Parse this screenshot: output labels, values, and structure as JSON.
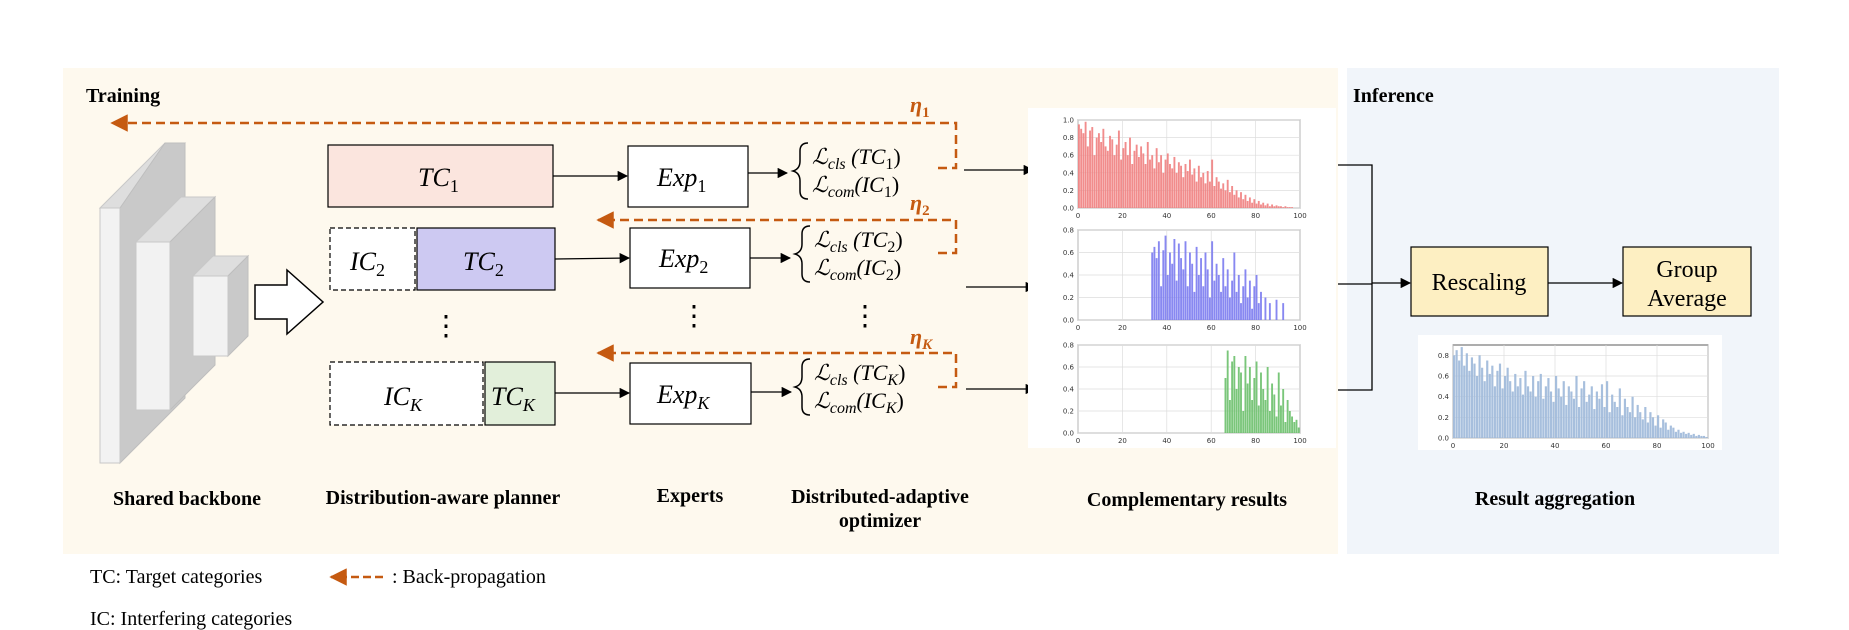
{
  "sections": {
    "training_label": "Training",
    "inference_label": "Inference"
  },
  "etas": [
    {
      "sym": "η",
      "sub": "1"
    },
    {
      "sym": "η",
      "sub": "2"
    },
    {
      "sym": "η",
      "sub": "K"
    }
  ],
  "planner": {
    "rows": [
      {
        "tc_base": "TC",
        "tc_sub": "1",
        "ic_base": "",
        "ic_sub": ""
      },
      {
        "tc_base": "TC",
        "tc_sub": "2",
        "ic_base": "IC",
        "ic_sub": "2"
      },
      {
        "tc_base": "TC",
        "tc_sub": "K",
        "ic_base": "IC",
        "ic_sub": "K"
      }
    ],
    "ellipsis": "⋮"
  },
  "experts": [
    {
      "base": "Exp",
      "sub": "1"
    },
    {
      "base": "Exp",
      "sub": "2"
    },
    {
      "base": "Exp",
      "sub": "K"
    }
  ],
  "losses": [
    {
      "cls": "ℒ",
      "cls_sub": "cls",
      "cls_arg": "(TC",
      "cls_arg_sub": "1",
      "com": "ℒ",
      "com_sub": "com",
      "com_arg": "(IC",
      "com_arg_sub": "1",
      "close": ")"
    },
    {
      "cls": "ℒ",
      "cls_sub": "cls",
      "cls_arg": "(TC",
      "cls_arg_sub": "2",
      "com": "ℒ",
      "com_sub": "com",
      "com_arg": "(IC",
      "com_arg_sub": "2",
      "close": ")"
    },
    {
      "cls": "ℒ",
      "cls_sub": "cls",
      "cls_arg": "(TC",
      "cls_arg_sub": "K",
      "com": "ℒ",
      "com_sub": "com",
      "com_arg": "(IC",
      "com_arg_sub": "K",
      "close": ")"
    }
  ],
  "aggregation": {
    "rescaling": "Rescaling",
    "group_average_line1": "Group",
    "group_average_line2": "Average"
  },
  "stage_labels": {
    "backbone": "Shared backbone",
    "planner": "Distribution-aware planner",
    "experts": "Experts",
    "optimizer_line1": "Distributed-adaptive",
    "optimizer_line2": "optimizer",
    "complementary": "Complementary results",
    "aggregation": "Result aggregation"
  },
  "legend": {
    "tc": "TC: Target categories",
    "ic": "IC:  Interfering categories",
    "backprop": ": Back-propagation"
  },
  "colors": {
    "training_bg": "#FEF9EE",
    "inference_bg": "#F1F5FA",
    "arrow_orange": "#C55A11",
    "tc1_fill": "#FBE5DE",
    "tc2_fill": "#CDC9F2",
    "tcK_fill": "#E2EFDA",
    "agg_fill": "#FDEFC2",
    "red_series": "#F08080",
    "blue_series": "#7B7BF0",
    "green_series": "#6CC06C",
    "steel_series": "#9DB8D9"
  },
  "chart_data": [
    {
      "type": "bar",
      "title": "",
      "xlim": [
        0,
        100
      ],
      "ylim": [
        0,
        1.0
      ],
      "xticks": [
        "0",
        "20",
        "40",
        "60",
        "80",
        "100"
      ],
      "yticks": [
        "0.0",
        "0.2",
        "0.4",
        "0.6",
        "0.8",
        "1.0"
      ],
      "grid": true,
      "color": "#F08080",
      "x": [
        0,
        1,
        2,
        3,
        4,
        5,
        6,
        7,
        8,
        9,
        10,
        11,
        12,
        13,
        14,
        15,
        16,
        17,
        18,
        19,
        20,
        21,
        22,
        23,
        24,
        25,
        26,
        27,
        28,
        29,
        30,
        31,
        32,
        33,
        34,
        35,
        36,
        37,
        38,
        39,
        40,
        41,
        42,
        43,
        44,
        45,
        46,
        47,
        48,
        49,
        50,
        51,
        52,
        53,
        54,
        55,
        56,
        57,
        58,
        59,
        60,
        61,
        62,
        63,
        64,
        65,
        66,
        67,
        68,
        69,
        70,
        71,
        72,
        73,
        74,
        75,
        76,
        77,
        78,
        79,
        80,
        81,
        82,
        83,
        84,
        85,
        86,
        87,
        88,
        89,
        90,
        91,
        92,
        93,
        94,
        95,
        96,
        97,
        98,
        99
      ],
      "values": [
        0.95,
        0.9,
        0.85,
        0.98,
        0.7,
        0.88,
        0.92,
        0.6,
        0.8,
        0.85,
        0.75,
        0.9,
        0.7,
        0.65,
        0.82,
        0.78,
        0.6,
        0.72,
        0.88,
        0.55,
        0.68,
        0.75,
        0.6,
        0.8,
        0.5,
        0.65,
        0.72,
        0.58,
        0.7,
        0.62,
        0.5,
        0.75,
        0.55,
        0.6,
        0.45,
        0.68,
        0.52,
        0.6,
        0.4,
        0.55,
        0.62,
        0.5,
        0.45,
        0.58,
        0.4,
        0.52,
        0.48,
        0.35,
        0.5,
        0.42,
        0.55,
        0.38,
        0.45,
        0.3,
        0.48,
        0.35,
        0.4,
        0.28,
        0.42,
        0.3,
        0.55,
        0.25,
        0.35,
        0.3,
        0.22,
        0.28,
        0.2,
        0.32,
        0.18,
        0.25,
        0.15,
        0.2,
        0.12,
        0.18,
        0.1,
        0.15,
        0.08,
        0.12,
        0.06,
        0.1,
        0.05,
        0.08,
        0.04,
        0.06,
        0.03,
        0.05,
        0.02,
        0.04,
        0.02,
        0.03,
        0.02,
        0.02,
        0.01,
        0.02,
        0.01,
        0.01,
        0.01,
        0.0,
        0.0,
        0.0
      ]
    },
    {
      "type": "bar",
      "title": "",
      "xlim": [
        0,
        100
      ],
      "ylim": [
        0,
        0.8
      ],
      "xticks": [
        "0",
        "20",
        "40",
        "60",
        "80",
        "100"
      ],
      "yticks": [
        "0.0",
        "0.2",
        "0.4",
        "0.6",
        "0.8"
      ],
      "grid": true,
      "color": "#7B7BF0",
      "x": [
        33,
        34,
        35,
        36,
        37,
        38,
        39,
        40,
        41,
        42,
        43,
        44,
        45,
        46,
        47,
        48,
        49,
        50,
        51,
        52,
        53,
        54,
        55,
        56,
        57,
        58,
        59,
        60,
        61,
        62,
        63,
        64,
        65,
        66,
        67,
        68,
        69,
        70,
        71,
        72,
        73,
        74,
        75,
        76,
        77,
        78,
        79,
        80,
        81,
        82,
        83,
        84,
        85,
        86,
        87,
        88,
        89,
        90,
        91,
        92,
        93,
        94,
        95,
        96,
        97,
        98,
        99
      ],
      "values": [
        0.6,
        0.65,
        0.55,
        0.7,
        0.3,
        0.62,
        0.75,
        0.4,
        0.6,
        0.5,
        0.72,
        0.35,
        0.68,
        0.55,
        0.45,
        0.7,
        0.3,
        0.6,
        0.5,
        0.25,
        0.65,
        0.4,
        0.55,
        0.3,
        0.6,
        0.45,
        0.2,
        0.7,
        0.35,
        0.5,
        0.4,
        0.25,
        0.55,
        0.3,
        0.45,
        0.2,
        0.35,
        0.6,
        0.25,
        0.4,
        0.15,
        0.3,
        0.45,
        0.2,
        0.35,
        0.1,
        0.3,
        0.4,
        0.15,
        0.25,
        0.0,
        0.2,
        0.0,
        0.15,
        0.0,
        0.0,
        0.18,
        0.0,
        0.0,
        0.15,
        0.0,
        0.0,
        0.0,
        0.0,
        0.0,
        0.0,
        0.0
      ]
    },
    {
      "type": "bar",
      "title": "",
      "xlim": [
        0,
        100
      ],
      "ylim": [
        0,
        0.8
      ],
      "xticks": [
        "0",
        "20",
        "40",
        "60",
        "80",
        "100"
      ],
      "yticks": [
        "0.0",
        "0.2",
        "0.4",
        "0.6",
        "0.8"
      ],
      "grid": true,
      "color": "#6CC06C",
      "x": [
        66,
        67,
        68,
        69,
        70,
        71,
        72,
        73,
        74,
        75,
        76,
        77,
        78,
        79,
        80,
        81,
        82,
        83,
        84,
        85,
        86,
        87,
        88,
        89,
        90,
        91,
        92,
        93,
        94,
        95,
        96,
        97,
        98,
        99
      ],
      "values": [
        0.5,
        0.75,
        0.3,
        0.65,
        0.7,
        0.4,
        0.6,
        0.55,
        0.2,
        0.7,
        0.45,
        0.6,
        0.3,
        0.5,
        0.65,
        0.25,
        0.55,
        0.4,
        0.3,
        0.6,
        0.2,
        0.45,
        0.35,
        0.15,
        0.55,
        0.25,
        0.4,
        0.1,
        0.3,
        0.2,
        0.15,
        0.1,
        0.12,
        0.05
      ]
    },
    {
      "type": "bar",
      "title": "",
      "xlim": [
        0,
        100
      ],
      "ylim": [
        0,
        0.9
      ],
      "xticks": [
        "0",
        "20",
        "40",
        "60",
        "80",
        "100"
      ],
      "yticks": [
        "0.0",
        "0.2",
        "0.4",
        "0.6",
        "0.8"
      ],
      "grid": true,
      "color": "#9DB8D9",
      "x": [
        0,
        1,
        2,
        3,
        4,
        5,
        6,
        7,
        8,
        9,
        10,
        11,
        12,
        13,
        14,
        15,
        16,
        17,
        18,
        19,
        20,
        21,
        22,
        23,
        24,
        25,
        26,
        27,
        28,
        29,
        30,
        31,
        32,
        33,
        34,
        35,
        36,
        37,
        38,
        39,
        40,
        41,
        42,
        43,
        44,
        45,
        46,
        47,
        48,
        49,
        50,
        51,
        52,
        53,
        54,
        55,
        56,
        57,
        58,
        59,
        60,
        61,
        62,
        63,
        64,
        65,
        66,
        67,
        68,
        69,
        70,
        71,
        72,
        73,
        74,
        75,
        76,
        77,
        78,
        79,
        80,
        81,
        82,
        83,
        84,
        85,
        86,
        87,
        88,
        89,
        90,
        91,
        92,
        93,
        94,
        95,
        96,
        97,
        98,
        99
      ],
      "values": [
        0.8,
        0.85,
        0.75,
        0.88,
        0.7,
        0.82,
        0.65,
        0.78,
        0.72,
        0.6,
        0.8,
        0.68,
        0.55,
        0.75,
        0.62,
        0.7,
        0.5,
        0.65,
        0.72,
        0.48,
        0.6,
        0.68,
        0.55,
        0.45,
        0.62,
        0.5,
        0.58,
        0.42,
        0.65,
        0.5,
        0.45,
        0.6,
        0.4,
        0.55,
        0.62,
        0.38,
        0.5,
        0.58,
        0.45,
        0.35,
        0.6,
        0.48,
        0.4,
        0.55,
        0.32,
        0.5,
        0.45,
        0.38,
        0.6,
        0.3,
        0.48,
        0.55,
        0.35,
        0.42,
        0.5,
        0.28,
        0.45,
        0.38,
        0.52,
        0.3,
        0.55,
        0.25,
        0.42,
        0.35,
        0.3,
        0.48,
        0.22,
        0.38,
        0.3,
        0.25,
        0.4,
        0.2,
        0.32,
        0.25,
        0.18,
        0.3,
        0.15,
        0.25,
        0.2,
        0.12,
        0.22,
        0.1,
        0.18,
        0.15,
        0.08,
        0.12,
        0.1,
        0.06,
        0.08,
        0.05,
        0.06,
        0.04,
        0.05,
        0.03,
        0.04,
        0.02,
        0.03,
        0.02,
        0.02,
        0.01
      ]
    }
  ]
}
